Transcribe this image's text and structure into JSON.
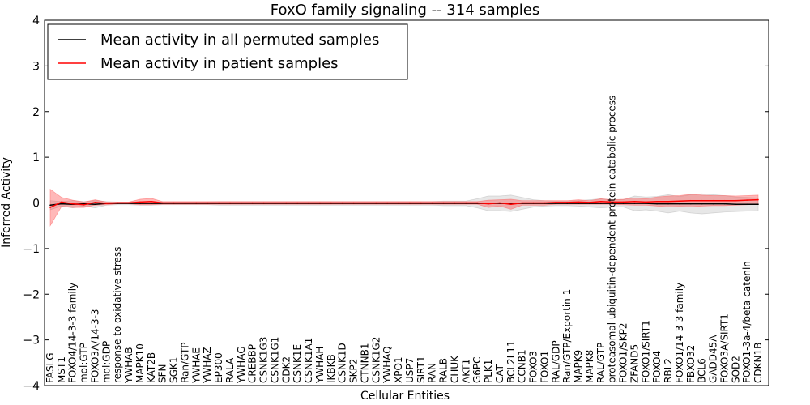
{
  "chart_data": {
    "type": "line",
    "title": "FoxO family signaling -- 314 samples",
    "xlabel": "Cellular Entities",
    "ylabel": "Inferred Activity",
    "ylim": [
      -4,
      4
    ],
    "yticks": [
      "−4",
      "−3",
      "−2",
      "−1",
      "0",
      "1",
      "2",
      "3",
      "4"
    ],
    "grid": false,
    "legend_position": "top-left",
    "categories": [
      "FASLG",
      "MST1",
      "FOXO4/14-3-3 family",
      "mol:GTP",
      "FOXO3A/14-3-3",
      "mol:GDP",
      "response to oxidative stress",
      "YWHAB",
      "MAPK10",
      "KAT2B",
      "SFN",
      "SGK1",
      "Ran/GTP",
      "YWHAE",
      "YWHAZ",
      "EP300",
      "RALA",
      "YWHAG",
      "CREBBP",
      "CSNK1G3",
      "CSNK1G1",
      "CDK2",
      "CSNK1E",
      "CSNK1A1",
      "YWHAH",
      "IKBKB",
      "CSNK1D",
      "SKP2",
      "CTNNB1",
      "CSNK1G2",
      "YWHAQ",
      "XPO1",
      "USP7",
      "SIRT1",
      "RAN",
      "RALB",
      "CHUK",
      "AKT1",
      "G6PC",
      "PLK1",
      "CAT",
      "BCL2L11",
      "CCNB1",
      "FOXO3",
      "FOXO1",
      "RAL/GDP",
      "Ran/GTP/Exportin 1",
      "MAPK9",
      "MAPK8",
      "RAL/GTP",
      "proteasomal ubiquitin-dependent protein catabolic process",
      "FOXO1/SKP2",
      "ZFAND5",
      "FOXO1/SIRT1",
      "FOXO4",
      "RBL2",
      "FOXO1/14-3-3 family",
      "FBXO32",
      "BCL6",
      "GADD45A",
      "FOXO3A/SIRT1",
      "SOD2",
      "FOXO1-3a-4/beta catenin",
      "CDKN1B"
    ],
    "series": [
      {
        "name": "Mean activity in all permuted samples",
        "color": "#000000",
        "values": [
          -0.05,
          -0.02,
          -0.03,
          -0.02,
          -0.03,
          -0.01,
          -0.01,
          -0.01,
          -0.01,
          -0.01,
          -0.01,
          -0.01,
          -0.01,
          -0.01,
          -0.01,
          -0.01,
          -0.01,
          -0.01,
          -0.01,
          -0.01,
          -0.01,
          -0.01,
          -0.01,
          -0.01,
          -0.01,
          -0.01,
          -0.01,
          -0.01,
          -0.01,
          -0.01,
          -0.01,
          -0.01,
          -0.01,
          -0.01,
          -0.01,
          -0.01,
          -0.01,
          -0.01,
          -0.01,
          -0.01,
          -0.01,
          -0.01,
          -0.01,
          -0.01,
          -0.01,
          -0.01,
          -0.01,
          -0.01,
          -0.01,
          -0.01,
          -0.01,
          -0.01,
          -0.01,
          -0.01,
          -0.02,
          -0.02,
          -0.02,
          -0.02,
          -0.02,
          -0.02,
          -0.02,
          -0.03,
          -0.03,
          -0.03
        ],
        "band": [
          0.1,
          0.05,
          0.08,
          0.05,
          0.08,
          0.04,
          0.03,
          0.03,
          0.04,
          0.04,
          0.03,
          0.03,
          0.03,
          0.03,
          0.03,
          0.04,
          0.04,
          0.04,
          0.04,
          0.04,
          0.04,
          0.04,
          0.04,
          0.04,
          0.04,
          0.04,
          0.04,
          0.04,
          0.04,
          0.04,
          0.04,
          0.04,
          0.04,
          0.04,
          0.04,
          0.05,
          0.05,
          0.05,
          0.1,
          0.16,
          0.16,
          0.18,
          0.13,
          0.08,
          0.06,
          0.05,
          0.05,
          0.06,
          0.08,
          0.1,
          0.08,
          0.08,
          0.16,
          0.14,
          0.16,
          0.2,
          0.16,
          0.2,
          0.22,
          0.2,
          0.18,
          0.16,
          0.15,
          0.14
        ]
      },
      {
        "name": "Mean activity in patient samples",
        "color": "#ff0000",
        "values": [
          -0.1,
          0.02,
          -0.02,
          -0.04,
          0.01,
          -0.01,
          0.0,
          0.0,
          0.02,
          0.03,
          0.0,
          0.0,
          0.0,
          0.0,
          0.0,
          0.0,
          0.0,
          0.0,
          0.0,
          0.0,
          0.0,
          0.0,
          0.0,
          0.0,
          0.0,
          0.0,
          0.0,
          0.0,
          0.0,
          0.0,
          0.0,
          0.0,
          0.0,
          0.0,
          0.0,
          0.0,
          0.0,
          0.0,
          0.0,
          -0.02,
          0.0,
          -0.03,
          0.0,
          0.0,
          0.0,
          0.01,
          0.01,
          0.02,
          0.01,
          0.03,
          0.02,
          0.02,
          0.03,
          0.02,
          0.03,
          0.03,
          0.04,
          0.05,
          0.05,
          0.05,
          0.05,
          0.05,
          0.06,
          0.07
        ],
        "band": [
          0.4,
          0.1,
          0.08,
          0.06,
          0.06,
          0.03,
          0.02,
          0.02,
          0.06,
          0.07,
          0.03,
          0.03,
          0.03,
          0.03,
          0.03,
          0.03,
          0.03,
          0.03,
          0.03,
          0.03,
          0.03,
          0.03,
          0.03,
          0.03,
          0.03,
          0.03,
          0.03,
          0.03,
          0.03,
          0.03,
          0.03,
          0.03,
          0.03,
          0.03,
          0.03,
          0.03,
          0.03,
          0.03,
          0.03,
          0.08,
          0.07,
          0.11,
          0.05,
          0.05,
          0.05,
          0.04,
          0.04,
          0.05,
          0.04,
          0.06,
          0.05,
          0.06,
          0.08,
          0.07,
          0.1,
          0.12,
          0.12,
          0.14,
          0.12,
          0.11,
          0.11,
          0.1,
          0.1,
          0.1
        ]
      }
    ]
  }
}
